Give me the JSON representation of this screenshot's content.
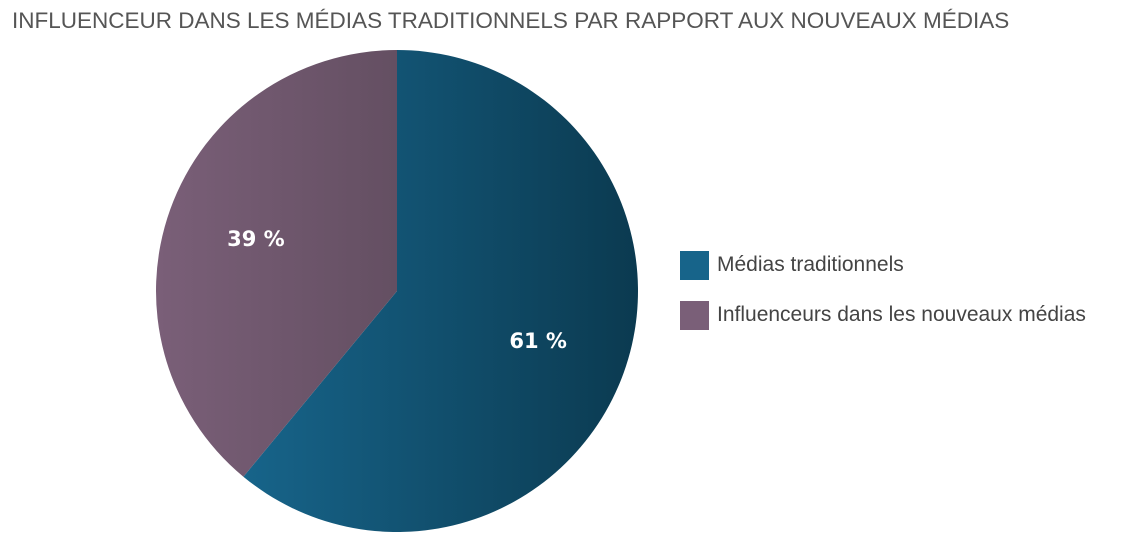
{
  "chart_data": {
    "type": "pie",
    "title": "INFLUENCEUR DANS LES MÉDIAS TRADITIONNELS PAR RAPPORT AUX NOUVEAUX MÉDIAS",
    "categories": [
      "Médias traditionnels",
      "Influenceurs dans les nouveaux médias"
    ],
    "values": [
      61,
      39
    ],
    "value_labels": [
      "61 %",
      "39 %"
    ],
    "colors": [
      "#17648a",
      "#7a5f78"
    ],
    "gradient_end_colors": [
      "#0b3a50",
      "#644f62"
    ],
    "legend_position": "right",
    "start_angle": "12 o'clock",
    "direction": "clockwise"
  }
}
